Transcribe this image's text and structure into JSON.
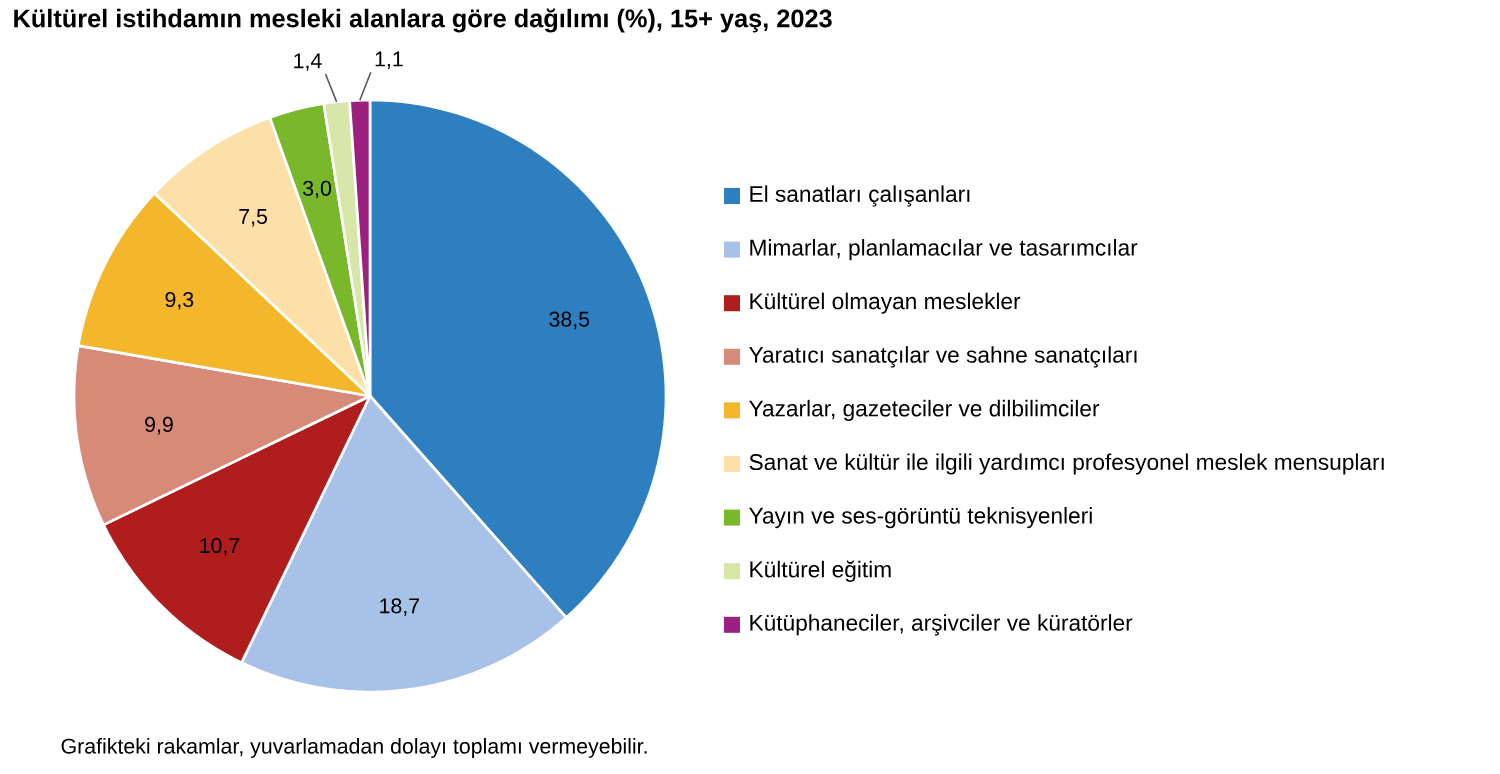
{
  "chart_data": {
    "type": "pie",
    "title": "Kültürel istihdamın mesleki alanlara göre dağılımı (%), 15+ yaş, 2023",
    "categories": [
      "El sanatları çalışanları",
      "Mimarlar, planlamacılar ve tasarımcılar",
      "Kültürel olmayan meslekler",
      "Yaratıcı sanatçılar ve sahne sanatçıları",
      "Yazarlar, gazeteciler ve dilbilimciler",
      "Sanat ve kültür ile ilgili yardımcı profesyonel meslek mensupları",
      "Yayın ve ses-görüntü teknisyenleri",
      "Kültürel eğitim",
      "Kütüphaneciler, arşivciler ve küratörler"
    ],
    "values": [
      38.5,
      18.7,
      10.7,
      9.9,
      9.3,
      7.5,
      3.0,
      1.4,
      1.1
    ],
    "value_labels": [
      "38,5",
      "18,7",
      "10,7",
      "9,9",
      "9,3",
      "7,5",
      "3,0",
      "1,4",
      "1,1"
    ],
    "colors": [
      "#2e7fc0",
      "#a7c2e6",
      "#b01d1d",
      "#d88a78",
      "#f4b72c",
      "#fde0a8",
      "#78b82a",
      "#d7e6a9",
      "#9c2080"
    ],
    "legend": "right",
    "annotations": [
      "Grafikteki rakamlar, yuvarlamadan dolayı toplamı vermeyebilir."
    ]
  }
}
